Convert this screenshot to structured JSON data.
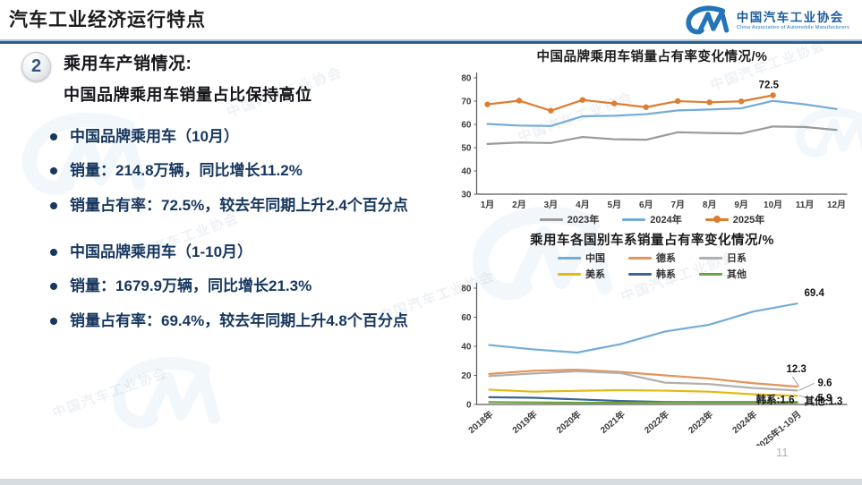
{
  "header": {
    "title": "汽车工业经济运行特点",
    "logo_cn": "中国汽车工业协会",
    "logo_en": "China Association of Automobile Manufacturers"
  },
  "watermark": {
    "text": "中国汽车工业协会"
  },
  "section": {
    "number": "2",
    "heading_line1": "乘用车产销情况:",
    "heading_line2": "中国品牌乘用车销量占比保持高位"
  },
  "left_panel": {
    "groups": [
      {
        "items": [
          "中国品牌乘用车（10月）",
          "销量：214.8万辆，同比增长11.2%",
          "销量占有率：72.5%，较去年同期上升2.4个百分点"
        ]
      },
      {
        "items": [
          "中国品牌乘用车（1-10月）",
          "销量：1679.9万辆，同比增长21.3%",
          "销量占有率：69.4%，较去年同期上升4.8个百分点"
        ]
      }
    ]
  },
  "footer": {
    "page_number": "11"
  },
  "chart_data": [
    {
      "type": "line",
      "title": "中国品牌乘用车销量占有率变化情况/%",
      "categories": [
        "1月",
        "2月",
        "3月",
        "4月",
        "5月",
        "6月",
        "7月",
        "8月",
        "9月",
        "10月",
        "11月",
        "12月"
      ],
      "ylim": [
        30,
        80
      ],
      "yticks": [
        30,
        40,
        50,
        60,
        70,
        80
      ],
      "grid": false,
      "legend_position": "bottom",
      "series": [
        {
          "name": "2023年",
          "color": "#9a9a9a",
          "values": [
            51.6,
            52.2,
            52.0,
            54.6,
            53.6,
            53.4,
            56.6,
            56.3,
            56.1,
            59.1,
            58.9,
            57.6
          ]
        },
        {
          "name": "2024年",
          "color": "#74acd5",
          "values": [
            60.2,
            59.5,
            59.3,
            63.5,
            63.7,
            64.4,
            66.0,
            66.4,
            66.9,
            70.1,
            68.6,
            66.6
          ]
        },
        {
          "name": "2025年",
          "color": "#dd7d31",
          "marker": true,
          "values": [
            68.6,
            70.2,
            65.9,
            70.5,
            69.0,
            67.4,
            70.0,
            69.5,
            69.9,
            72.5
          ]
        }
      ],
      "annotations": [
        {
          "text": "72.5",
          "series": "2025年",
          "x": "10月"
        }
      ]
    },
    {
      "type": "line",
      "title": "乘用车各国别车系销量占有率变化情况/%",
      "categories": [
        "2018年",
        "2019年",
        "2020年",
        "2021年",
        "2022年",
        "2023年",
        "2024年",
        "2025年1-10月"
      ],
      "ylim": [
        0,
        80
      ],
      "yticks": [
        0,
        20,
        40,
        60,
        80
      ],
      "grid": false,
      "legend_position": "top",
      "series": [
        {
          "name": "中国",
          "color": "#74acd5",
          "values": [
            40.9,
            37.9,
            35.7,
            41.6,
            50.2,
            54.8,
            63.9,
            69.4
          ]
        },
        {
          "name": "德系",
          "color": "#e2945a",
          "values": [
            21.0,
            23.2,
            23.9,
            22.3,
            20.0,
            17.8,
            14.6,
            12.3
          ]
        },
        {
          "name": "日系",
          "color": "#b0b0b0",
          "values": [
            19.5,
            21.3,
            22.8,
            21.5,
            15.0,
            14.0,
            11.3,
            9.6
          ]
        },
        {
          "name": "美系",
          "color": "#e3ba12",
          "values": [
            10.2,
            8.8,
            9.4,
            9.9,
            9.5,
            8.8,
            7.0,
            5.9
          ]
        },
        {
          "name": "韩系",
          "color": "#3a6595",
          "values": [
            5.0,
            4.6,
            3.5,
            2.4,
            1.7,
            1.6,
            1.6,
            1.6
          ]
        },
        {
          "name": "其他",
          "color": "#6ba43a",
          "values": [
            1.6,
            1.4,
            1.2,
            1.2,
            1.4,
            1.3,
            1.3,
            1.3
          ]
        }
      ],
      "annotations": [
        {
          "text": "69.4",
          "series": "中国",
          "x": "2025年1-10月"
        },
        {
          "text": "12.3",
          "series": "德系",
          "x": "2025年1-10月",
          "leader": true
        },
        {
          "text": "9.6",
          "series": "日系",
          "x": "2025年1-10月",
          "leader": true
        },
        {
          "text": "5.9",
          "series": "美系",
          "x": "2025年1-10月",
          "leader": true
        },
        {
          "text": "韩系:1.6",
          "series": "韩系",
          "x": "2025年1-10月"
        },
        {
          "text": "其他:1.3",
          "series": "其他",
          "x": "2025年1-10月"
        }
      ]
    }
  ]
}
